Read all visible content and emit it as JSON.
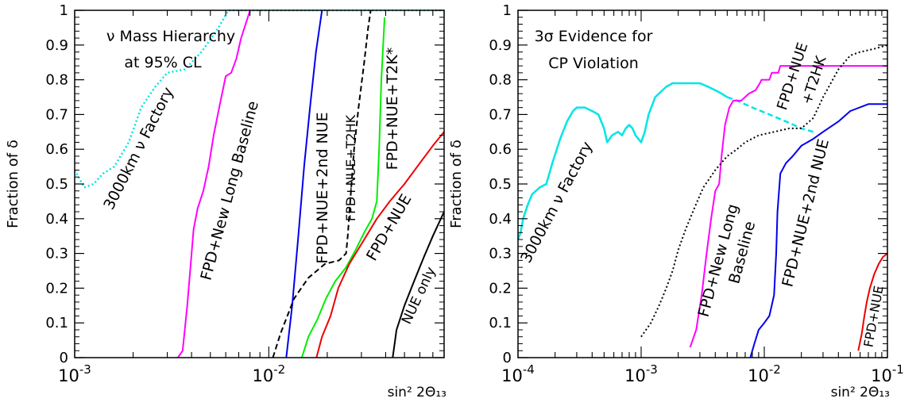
{
  "chart_data": [
    {
      "type": "line",
      "ylabel": "Fraction of δ",
      "xlabel": "sin² 2Θ₁₃",
      "xscale": "log",
      "xlim": [
        0.001,
        0.08
      ],
      "ylim": [
        0,
        1
      ],
      "xticks": [
        {
          "value": 0.001,
          "base": "10",
          "exp": "-3"
        },
        {
          "value": 0.01,
          "base": "10",
          "exp": "-2"
        }
      ],
      "yticks": [
        "0",
        "0.1",
        "0.2",
        "0.3",
        "0.4",
        "0.5",
        "0.6",
        "0.7",
        "0.8",
        "0.9",
        "1"
      ],
      "annotations": {
        "title_line1": "ν Mass Hierarchy",
        "title_line2": "at 95% CL",
        "label_factory": "3000km ν Factory",
        "label_newlong": "FPD+New Long Baseline",
        "label_nue2nd": "FPD+NUE+2nd NUE",
        "label_t2hk": "FPD+NUE+T2HK",
        "label_t2k": "FPD+NUE+T2K*",
        "label_fpdnue": "FPD+NUE",
        "label_nueonly": "NUE only"
      },
      "series": [
        {
          "key": "factory",
          "color": "#00e5e5",
          "dash": "dotted",
          "width": 2.5,
          "points": [
            [
              0.001,
              0.54
            ],
            [
              0.00112,
              0.49
            ],
            [
              0.00125,
              0.5
            ],
            [
              0.0014,
              0.53
            ],
            [
              0.0016,
              0.55
            ],
            [
              0.0019,
              0.62
            ],
            [
              0.0022,
              0.72
            ],
            [
              0.0026,
              0.78
            ],
            [
              0.003,
              0.82
            ],
            [
              0.0037,
              0.83
            ],
            [
              0.0045,
              0.88
            ],
            [
              0.0055,
              0.95
            ],
            [
              0.0062,
              1.0
            ],
            [
              0.08,
              1.0
            ]
          ]
        },
        {
          "key": "newlong",
          "color": "#ff00ff",
          "dash": "solid",
          "width": 2,
          "points": [
            [
              0.0034,
              0.0
            ],
            [
              0.0036,
              0.02
            ],
            [
              0.0038,
              0.15
            ],
            [
              0.0041,
              0.37
            ],
            [
              0.0043,
              0.43
            ],
            [
              0.0046,
              0.48
            ],
            [
              0.0049,
              0.55
            ],
            [
              0.0052,
              0.64
            ],
            [
              0.0056,
              0.73
            ],
            [
              0.006,
              0.81
            ],
            [
              0.0064,
              0.82
            ],
            [
              0.0068,
              0.86
            ],
            [
              0.0072,
              0.92
            ],
            [
              0.0077,
              0.97
            ],
            [
              0.008,
              1.0
            ]
          ]
        },
        {
          "key": "nue2nd",
          "color": "#0000ee",
          "dash": "solid",
          "width": 2,
          "points": [
            [
              0.0123,
              0.0
            ],
            [
              0.0132,
              0.15
            ],
            [
              0.0142,
              0.35
            ],
            [
              0.0152,
              0.55
            ],
            [
              0.0163,
              0.72
            ],
            [
              0.0175,
              0.88
            ],
            [
              0.0188,
              1.0
            ]
          ]
        },
        {
          "key": "t2hk",
          "color": "#000000",
          "dash": "dashed",
          "width": 2,
          "points": [
            [
              0.0105,
              0.0
            ],
            [
              0.0115,
              0.07
            ],
            [
              0.0135,
              0.17
            ],
            [
              0.016,
              0.23
            ],
            [
              0.0195,
              0.27
            ],
            [
              0.023,
              0.28
            ],
            [
              0.025,
              0.3
            ],
            [
              0.0255,
              0.35
            ],
            [
              0.0265,
              0.48
            ],
            [
              0.0275,
              0.6
            ],
            [
              0.029,
              0.72
            ],
            [
              0.031,
              0.85
            ],
            [
              0.0325,
              0.95
            ],
            [
              0.0335,
              1.0
            ]
          ]
        },
        {
          "key": "t2k",
          "color": "#00ee00",
          "dash": "solid",
          "width": 2,
          "points": [
            [
              0.0148,
              0.0
            ],
            [
              0.016,
              0.06
            ],
            [
              0.0178,
              0.11
            ],
            [
              0.0197,
              0.17
            ],
            [
              0.022,
              0.22
            ],
            [
              0.025,
              0.26
            ],
            [
              0.028,
              0.31
            ],
            [
              0.031,
              0.36
            ],
            [
              0.034,
              0.4
            ],
            [
              0.036,
              0.45
            ],
            [
              0.037,
              0.6
            ],
            [
              0.038,
              0.8
            ],
            [
              0.0395,
              0.98
            ]
          ]
        },
        {
          "key": "fpdnue",
          "color": "#ee0000",
          "dash": "solid",
          "width": 2,
          "points": [
            [
              0.0176,
              0.0
            ],
            [
              0.0188,
              0.06
            ],
            [
              0.0208,
              0.12
            ],
            [
              0.0228,
              0.2
            ],
            [
              0.026,
              0.27
            ],
            [
              0.031,
              0.34
            ],
            [
              0.036,
              0.4
            ],
            [
              0.042,
              0.45
            ],
            [
              0.05,
              0.5
            ],
            [
              0.06,
              0.56
            ],
            [
              0.07,
              0.61
            ],
            [
              0.08,
              0.65
            ]
          ]
        },
        {
          "key": "nueonly",
          "color": "#000000",
          "dash": "solid",
          "width": 2,
          "points": [
            [
              0.0435,
              0.0
            ],
            [
              0.0455,
              0.08
            ],
            [
              0.05,
              0.15
            ],
            [
              0.056,
              0.22
            ],
            [
              0.063,
              0.29
            ],
            [
              0.07,
              0.35
            ],
            [
              0.08,
              0.42
            ]
          ]
        }
      ]
    },
    {
      "type": "line",
      "ylabel": "Fraction of δ",
      "xlabel": "sin² 2Θ₁₃",
      "xscale": "log",
      "xlim": [
        0.0001,
        0.1
      ],
      "ylim": [
        0,
        1
      ],
      "xticks": [
        {
          "value": 0.0001,
          "base": "10",
          "exp": "-4"
        },
        {
          "value": 0.001,
          "base": "10",
          "exp": "-3"
        },
        {
          "value": 0.01,
          "base": "10",
          "exp": "-2"
        },
        {
          "value": 0.1,
          "base": "10",
          "exp": "-1"
        }
      ],
      "yticks": [
        "0",
        "0.1",
        "0.2",
        "0.3",
        "0.4",
        "0.5",
        "0.6",
        "0.7",
        "0.8",
        "0.9",
        "1"
      ],
      "annotations": {
        "title_line1": "3σ Evidence for",
        "title_line2": "CP Violation",
        "label_factory": "3000km ν Factory",
        "label_newlong_1": "FPD+New Long",
        "label_newlong_2": "Baseline",
        "label_t2hk_1": "FPD+NUE",
        "label_t2hk_2": "+T2HK",
        "label_nue2nd": "FPD+NUE+2nd NUE",
        "label_fpdnue": "FPD+NUE"
      },
      "series": [
        {
          "key": "factory",
          "color": "#00e5e5",
          "dash": "solid",
          "width": 2.5,
          "points": [
            [
              0.0001,
              0.34
            ],
            [
              0.000105,
              0.36
            ],
            [
              0.00011,
              0.4
            ],
            [
              0.00012,
              0.44
            ],
            [
              0.00013,
              0.47
            ],
            [
              0.00015,
              0.49
            ],
            [
              0.00017,
              0.5
            ],
            [
              0.00019,
              0.56
            ],
            [
              0.00022,
              0.63
            ],
            [
              0.00025,
              0.68
            ],
            [
              0.00028,
              0.71
            ],
            [
              0.0003,
              0.72
            ],
            [
              0.00035,
              0.72
            ],
            [
              0.0004,
              0.71
            ],
            [
              0.00045,
              0.7
            ],
            [
              0.0005,
              0.66
            ],
            [
              0.00053,
              0.62
            ],
            [
              0.00058,
              0.64
            ],
            [
              0.00065,
              0.65
            ],
            [
              0.0007,
              0.64
            ],
            [
              0.00075,
              0.66
            ],
            [
              0.0008,
              0.67
            ],
            [
              0.00085,
              0.66
            ],
            [
              0.0009,
              0.64
            ],
            [
              0.00095,
              0.63
            ],
            [
              0.001,
              0.62
            ],
            [
              0.00107,
              0.65
            ],
            [
              0.00115,
              0.7
            ],
            [
              0.0013,
              0.75
            ],
            [
              0.0016,
              0.78
            ],
            [
              0.0018,
              0.79
            ],
            [
              0.0025,
              0.79
            ],
            [
              0.003,
              0.79
            ],
            [
              0.0035,
              0.78
            ],
            [
              0.004,
              0.77
            ],
            [
              0.0045,
              0.76
            ],
            [
              0.005,
              0.75
            ]
          ]
        },
        {
          "key": "factory_tail",
          "color": "#00e5e5",
          "dash": "dashed",
          "width": 2.5,
          "points": [
            [
              0.005,
              0.75
            ],
            [
              0.006,
              0.74
            ],
            [
              0.008,
              0.72
            ],
            [
              0.011,
              0.7
            ],
            [
              0.015,
              0.68
            ],
            [
              0.02,
              0.66
            ],
            [
              0.025,
              0.65
            ]
          ]
        },
        {
          "key": "newlong",
          "color": "#ff00ff",
          "dash": "solid",
          "width": 2,
          "points": [
            [
              0.0025,
              0.03
            ],
            [
              0.0028,
              0.08
            ],
            [
              0.0031,
              0.18
            ],
            [
              0.0034,
              0.3
            ],
            [
              0.0037,
              0.4
            ],
            [
              0.004,
              0.48
            ],
            [
              0.0043,
              0.5
            ],
            [
              0.0045,
              0.58
            ],
            [
              0.0048,
              0.67
            ],
            [
              0.0052,
              0.72
            ],
            [
              0.0056,
              0.74
            ],
            [
              0.0065,
              0.74
            ],
            [
              0.0075,
              0.76
            ],
            [
              0.0085,
              0.77
            ],
            [
              0.0092,
              0.79
            ],
            [
              0.0095,
              0.8
            ],
            [
              0.011,
              0.8
            ],
            [
              0.0115,
              0.82
            ],
            [
              0.013,
              0.82
            ],
            [
              0.0135,
              0.84
            ],
            [
              0.1,
              0.84
            ]
          ]
        },
        {
          "key": "t2hk",
          "color": "#000000",
          "dash": "dotted",
          "width": 2,
          "points": [
            [
              0.001,
              0.06
            ],
            [
              0.0012,
              0.1
            ],
            [
              0.0014,
              0.15
            ],
            [
              0.0016,
              0.2
            ],
            [
              0.0018,
              0.25
            ],
            [
              0.002,
              0.31
            ],
            [
              0.0023,
              0.37
            ],
            [
              0.0027,
              0.43
            ],
            [
              0.0032,
              0.49
            ],
            [
              0.004,
              0.54
            ],
            [
              0.005,
              0.58
            ],
            [
              0.006,
              0.6
            ],
            [
              0.007,
              0.62
            ],
            [
              0.009,
              0.64
            ],
            [
              0.012,
              0.65
            ],
            [
              0.016,
              0.66
            ],
            [
              0.02,
              0.66
            ],
            [
              0.025,
              0.69
            ],
            [
              0.03,
              0.75
            ],
            [
              0.04,
              0.83
            ],
            [
              0.05,
              0.87
            ],
            [
              0.06,
              0.88
            ],
            [
              0.08,
              0.89
            ],
            [
              0.1,
              0.9
            ]
          ]
        },
        {
          "key": "nue2nd",
          "color": "#0000ee",
          "dash": "solid",
          "width": 2,
          "points": [
            [
              0.0077,
              0.0
            ],
            [
              0.0083,
              0.04
            ],
            [
              0.009,
              0.08
            ],
            [
              0.01,
              0.1
            ],
            [
              0.011,
              0.12
            ],
            [
              0.012,
              0.18
            ],
            [
              0.0125,
              0.3
            ],
            [
              0.0128,
              0.42
            ],
            [
              0.0135,
              0.53
            ],
            [
              0.015,
              0.56
            ],
            [
              0.017,
              0.58
            ],
            [
              0.02,
              0.61
            ],
            [
              0.025,
              0.63
            ],
            [
              0.03,
              0.65
            ],
            [
              0.04,
              0.68
            ],
            [
              0.05,
              0.71
            ],
            [
              0.07,
              0.73
            ],
            [
              0.1,
              0.73
            ]
          ]
        },
        {
          "key": "fpdnue",
          "color": "#ee0000",
          "dash": "solid",
          "width": 2,
          "points": [
            [
              0.058,
              0.02
            ],
            [
              0.062,
              0.07
            ],
            [
              0.065,
              0.12
            ],
            [
              0.068,
              0.16
            ],
            [
              0.072,
              0.2
            ],
            [
              0.078,
              0.24
            ],
            [
              0.085,
              0.27
            ],
            [
              0.092,
              0.29
            ],
            [
              0.1,
              0.3
            ]
          ]
        }
      ]
    }
  ]
}
